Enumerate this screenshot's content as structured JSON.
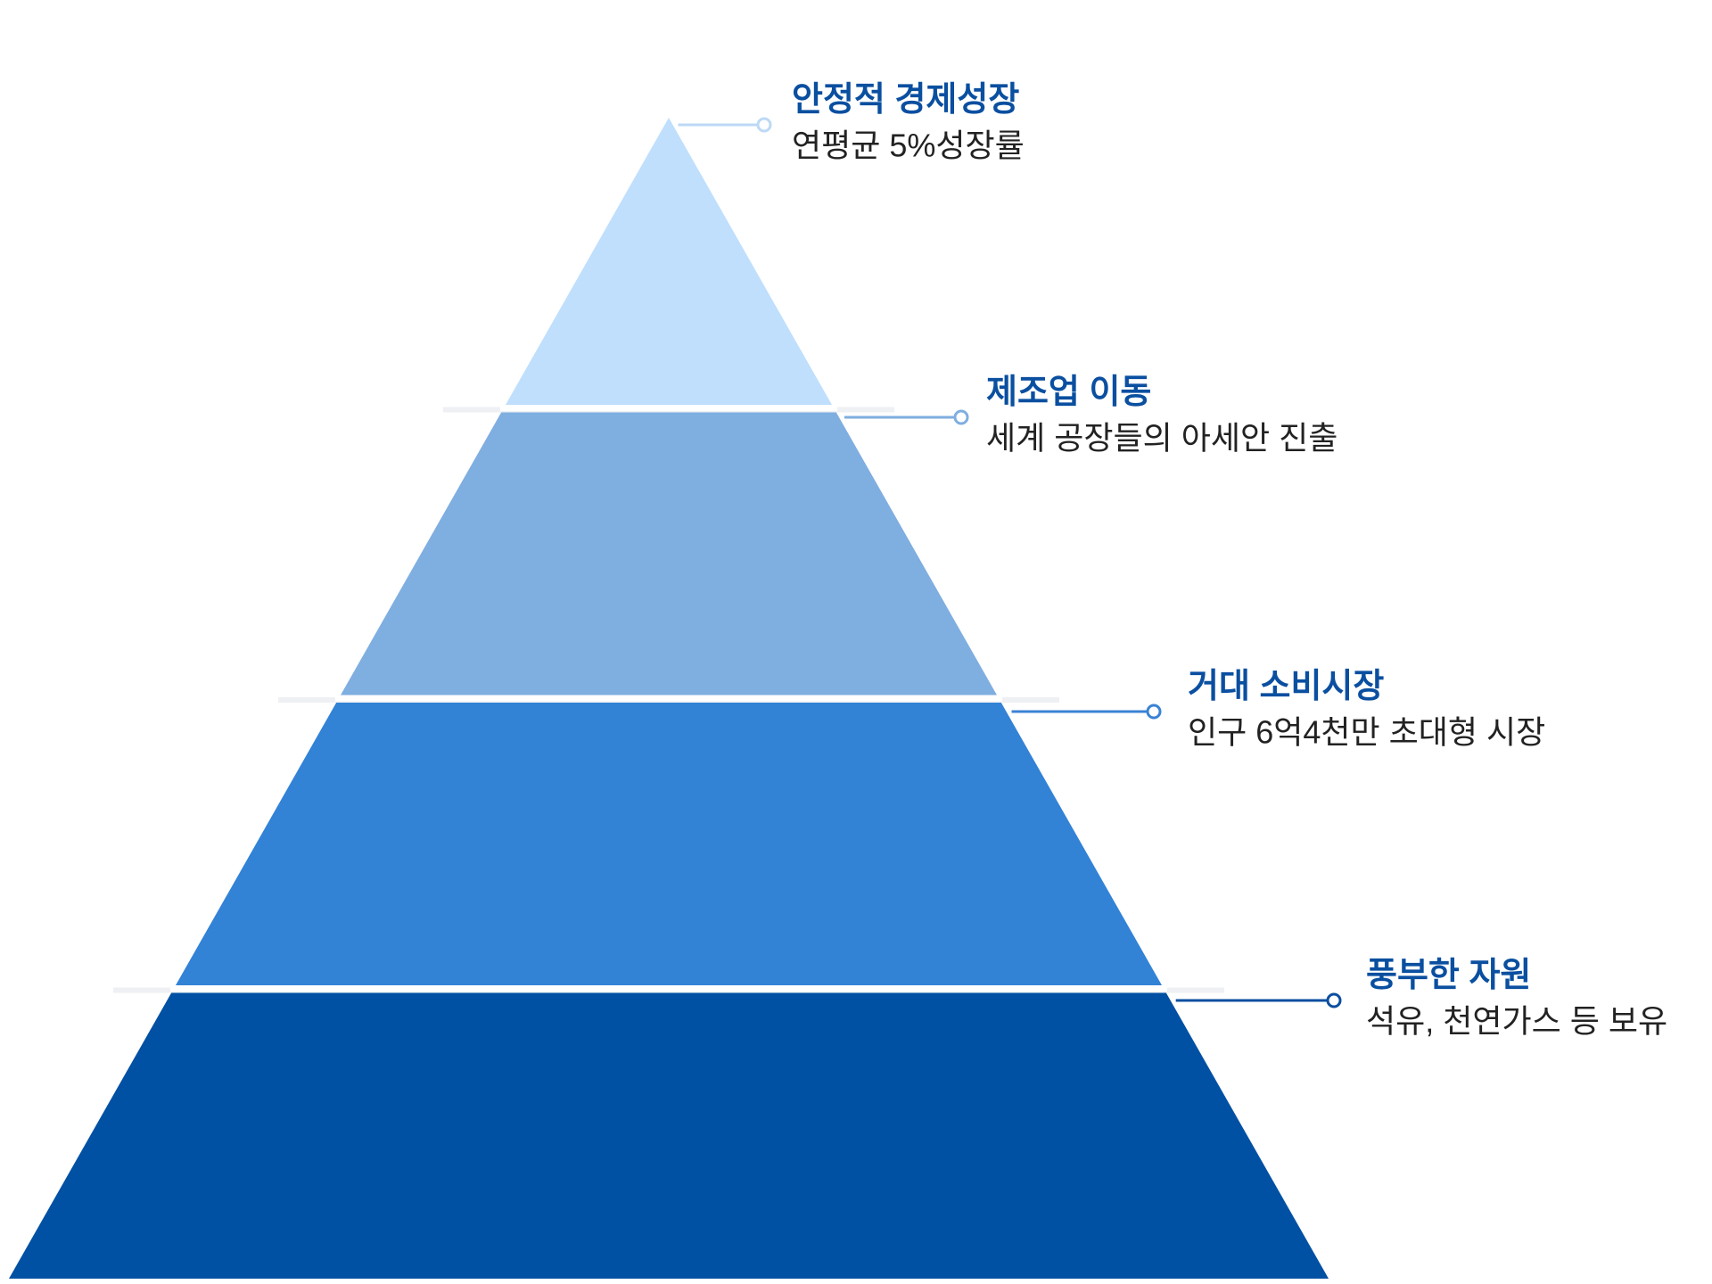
{
  "levels": [
    {
      "title": "안정적 경제성장",
      "description": "연평균 5%성장률"
    },
    {
      "title": "제조업 이동",
      "description": "세계 공장들의 아세안 진출"
    },
    {
      "title": "거대 소비시장",
      "description": "인구 6억4천만 초대형 시장"
    },
    {
      "title": "풍부한 자원",
      "description": "석유, 천연가스 등 보유"
    }
  ]
}
